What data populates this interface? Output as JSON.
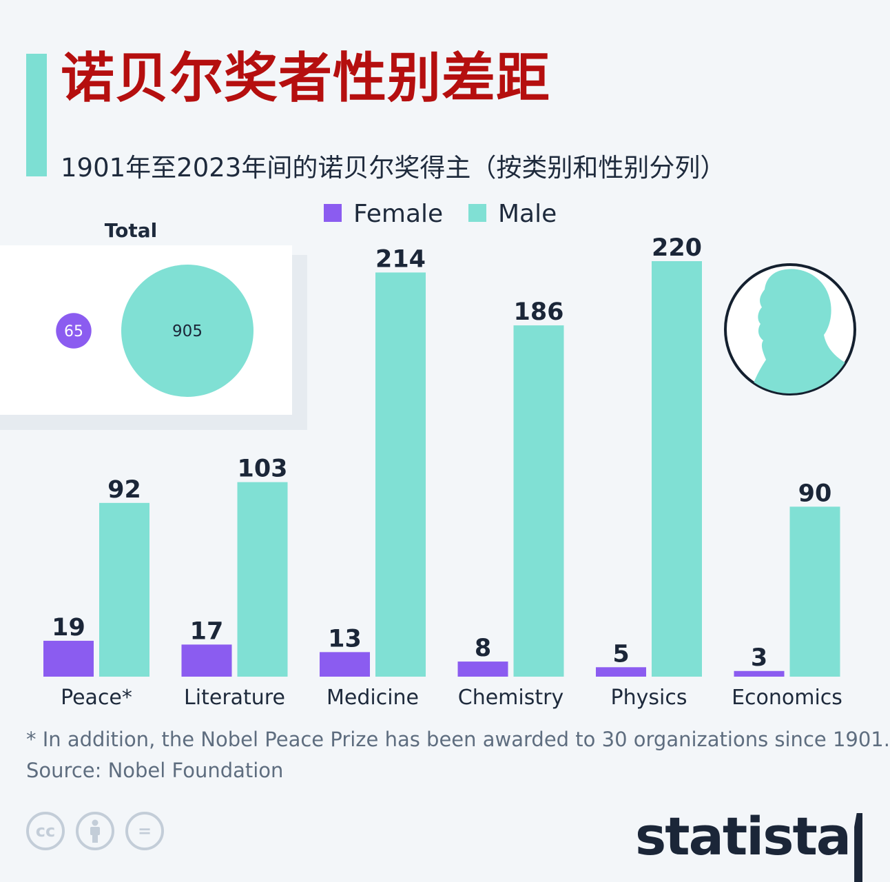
{
  "header": {
    "title": "诺贝尔奖者性别差距",
    "subtitle": "1901年至2023年间的诺贝尔奖得主（按类别和性别分列）"
  },
  "colors": {
    "female": "#8b5cf0",
    "male": "#80e0d4",
    "accent": "#7ddfd3",
    "title": "#b50f0f",
    "text": "#1b2638",
    "inset_bg": "#ffffff"
  },
  "chart_data": [
    {
      "type": "bar",
      "categories": [
        "Peace*",
        "Literature",
        "Medicine",
        "Chemistry",
        "Physics",
        "Economics"
      ],
      "series": [
        {
          "name": "Female",
          "values": [
            19,
            17,
            13,
            8,
            5,
            3
          ]
        },
        {
          "name": "Male",
          "values": [
            92,
            103,
            214,
            186,
            220,
            90
          ]
        }
      ],
      "ylim": [
        0,
        220
      ],
      "grid": false,
      "legend": "top-center",
      "data_labels": true
    },
    {
      "type": "bubble",
      "title": "Total",
      "series": [
        {
          "name": "Female",
          "values": [
            65
          ]
        },
        {
          "name": "Male",
          "values": [
            905
          ]
        }
      ]
    }
  ],
  "icons": {
    "medal": "nobel-medal-profile-icon",
    "cc": "cc-icon",
    "by": "attribution-icon",
    "nd": "no-derivatives-icon"
  },
  "footer": {
    "footnote": "* In addition, the Nobel Peace Prize has been awarded to 30 organizations since 1901.",
    "source": "Source: Nobel Foundation",
    "cc_label": "cc",
    "nd_label": "=",
    "logo": "statista"
  }
}
